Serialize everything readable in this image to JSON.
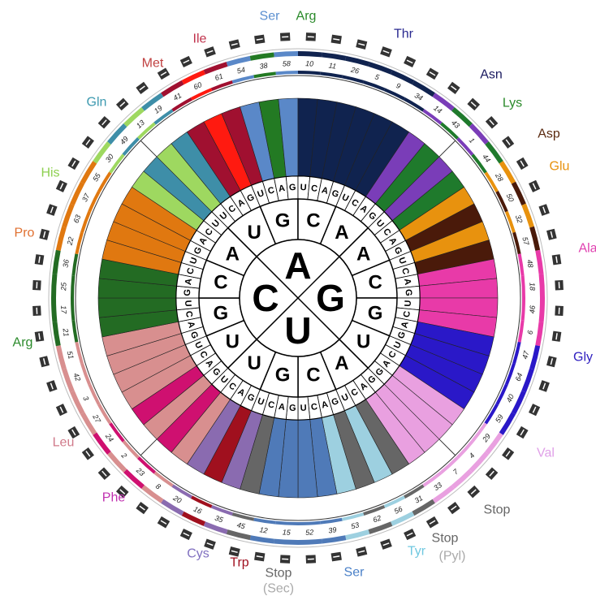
{
  "wheel": {
    "center": [
      "A",
      "G",
      "U",
      "C"
    ],
    "second": [
      "U",
      "G",
      "C",
      "A",
      "A",
      "C",
      "G",
      "U",
      "A",
      "C",
      "G",
      "U",
      "U",
      "G",
      "C",
      "A"
    ],
    "third": [
      "U",
      "C",
      "A",
      "G",
      "U",
      "C",
      "A",
      "G",
      "U",
      "C",
      "A",
      "G",
      "U",
      "C",
      "A",
      "G",
      "U",
      "C",
      "A",
      "G",
      "U",
      "C",
      "A",
      "G",
      "U",
      "C",
      "A",
      "G",
      "U",
      "C",
      "A",
      "G",
      "G",
      "A",
      "C",
      "U",
      "G",
      "A",
      "C",
      "U",
      "G",
      "A",
      "C",
      "U",
      "G",
      "A",
      "C",
      "U",
      "G",
      "A",
      "C",
      "U",
      "G",
      "A",
      "C",
      "U",
      "G",
      "A",
      "C",
      "U",
      "G",
      "A",
      "C",
      "U"
    ],
    "colors": [
      "#9ed860",
      "#3e8ea8",
      "#a01030",
      "#ff1a10",
      "#a01030",
      "#5a88c8",
      "#237a23",
      "#5a88c8",
      "#10234f",
      "#10234f",
      "#10234f",
      "#10234f",
      "#10234f",
      "#10234f",
      "#7a3db8",
      "#1f7a2c",
      "#7a3db8",
      "#1f7a2c",
      "#e8920e",
      "#4a1a0a",
      "#e8920e",
      "#4a1a0a",
      "#e83aa8",
      "#e83aa8",
      "#e83aa8",
      "#e83aa8",
      "#2a18c8",
      "#2a18c8",
      "#2a18c8",
      "#2a18c8",
      "#e9a0e0",
      "#e9a0e0",
      "#e9a0e0",
      "#e9a0e0",
      "#666666",
      "#9dd0e0",
      "#666666",
      "#9dd0e0",
      "#4f7ab8",
      "#4f7ab8",
      "#4f7ab8",
      "#4f7ab8",
      "#666666",
      "#8a6bb0",
      "#a0101e",
      "#8a6bb0",
      "#d88f8f",
      "#cf1070",
      "#d88f8f",
      "#cf1070",
      "#d88f8f",
      "#d88f8f",
      "#d88f8f",
      "#d88f8f",
      "#236b23",
      "#236b23",
      "#236b23",
      "#236b23",
      "#e07810",
      "#e07810",
      "#e07810",
      "#e07810",
      "#9ed860",
      "#3e8ea8"
    ],
    "numbers": [
      "13",
      "19",
      "41",
      "60",
      "61",
      "54",
      "38",
      "58",
      "10",
      "11",
      "26",
      "5",
      "9",
      "34",
      "14",
      "43",
      "1",
      "44",
      "28",
      "50",
      "32",
      "57",
      "48",
      "18",
      "46",
      "6",
      "47",
      "64",
      "40",
      "59",
      "29",
      "4",
      "7",
      "33",
      "31",
      "56",
      "62",
      "53",
      "39",
      "52",
      "15",
      "12",
      "45",
      "35",
      "16",
      "20",
      "8",
      "23",
      "2",
      "24",
      "27",
      "3",
      "42",
      "51",
      "21",
      "17",
      "25",
      "36",
      "22",
      "63",
      "37",
      "55",
      "30",
      "49"
    ]
  },
  "labels": [
    {
      "text": "Ser",
      "color": "#5b8fd0"
    },
    {
      "text": "Arg",
      "color": "#2a8a2a"
    },
    {
      "text": "Ile",
      "color": "#c0304a"
    },
    {
      "text": "Thr",
      "color": "#2a2a90"
    },
    {
      "text": "Met",
      "color": "#c04040"
    },
    {
      "text": "Asn",
      "color": "#1a1a60"
    },
    {
      "text": "Gln",
      "color": "#3e9ab0"
    },
    {
      "text": "Lys",
      "color": "#2a8a2a"
    },
    {
      "text": "Asp",
      "color": "#5a2a10"
    },
    {
      "text": "His",
      "color": "#8ed050"
    },
    {
      "text": "Glu",
      "color": "#e8920e"
    },
    {
      "text": "Pro",
      "color": "#e07030"
    },
    {
      "text": "Ala",
      "color": "#e040b0"
    },
    {
      "text": "Arg",
      "color": "#2a8a2a"
    },
    {
      "text": "Gly",
      "color": "#3020c0"
    },
    {
      "text": "Leu",
      "color": "#d07a8a"
    },
    {
      "text": "Val",
      "color": "#e0a0e8"
    },
    {
      "text": "Phe",
      "color": "#c030b0"
    },
    {
      "text": "Stop",
      "color": "#666666"
    },
    {
      "text": "Cys",
      "color": "#8070c0"
    },
    {
      "text": "Trp",
      "color": "#a01020"
    },
    {
      "text": "Stop",
      "color": "#666666"
    },
    {
      "text": "(Sec)",
      "color": "#aaaaaa"
    },
    {
      "text": "Ser",
      "color": "#4a80c8"
    },
    {
      "text": "Tyr",
      "color": "#70c8e0"
    },
    {
      "text": "Stop",
      "color": "#666666"
    },
    {
      "text": "(Pyl)",
      "color": "#aaaaaa"
    }
  ]
}
